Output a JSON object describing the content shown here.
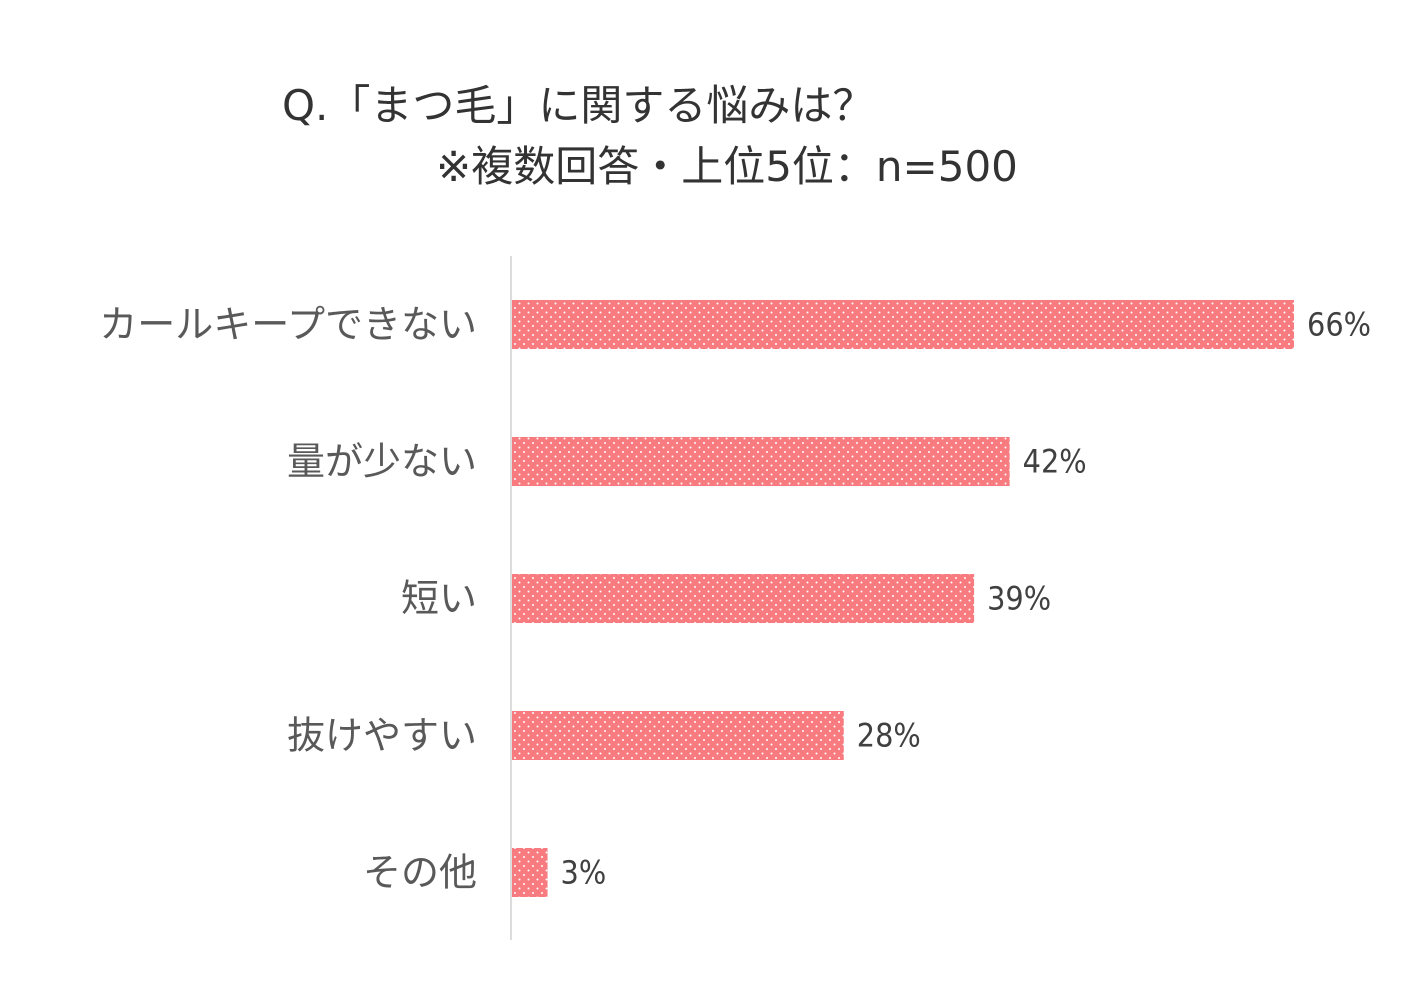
{
  "chart_data": {
    "type": "bar",
    "orientation": "horizontal",
    "title": "Q.「まつ毛」に関する悩みは？",
    "subtitle": "※複数回答・上位5位：n=500",
    "categories": [
      "カールキープできない",
      "量が少ない",
      "短い",
      "抜けやすい",
      "その他"
    ],
    "values": [
      66,
      42,
      39,
      28,
      3
    ],
    "value_labels": [
      "66%",
      "42%",
      "39%",
      "28%",
      "3%"
    ],
    "unit": "%",
    "xlim": [
      0,
      66
    ],
    "grid": false,
    "legend": "none",
    "bar_color": "#F77B7F",
    "bar_pattern": "white-dots"
  }
}
